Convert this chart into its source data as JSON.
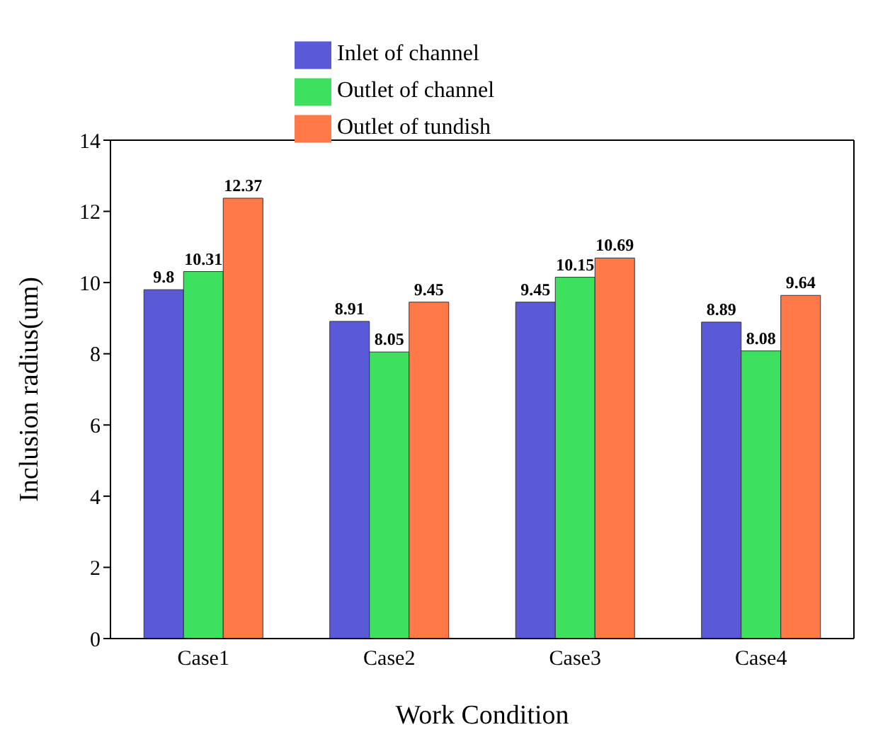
{
  "chart_data": {
    "type": "bar",
    "xlabel": "Work Condition",
    "ylabel": "Inclusion radius(um)",
    "categories": [
      "Case1",
      "Case2",
      "Case3",
      "Case4"
    ],
    "series": [
      {
        "name": "Inlet of channel",
        "color": "#5a5ad8",
        "values": [
          9.8,
          8.91,
          9.45,
          8.89
        ]
      },
      {
        "name": "Outlet of channel",
        "color": "#3ee060",
        "values": [
          10.31,
          8.05,
          10.15,
          8.08
        ]
      },
      {
        "name": "Outlet of tundish",
        "color": "#ff7a48",
        "values": [
          12.37,
          9.45,
          10.69,
          9.64
        ]
      }
    ],
    "ylim": [
      0,
      14
    ],
    "yticks": [
      0,
      2,
      4,
      6,
      8,
      10,
      12,
      14
    ],
    "grid": false,
    "legend": "top",
    "data_labels": true
  }
}
